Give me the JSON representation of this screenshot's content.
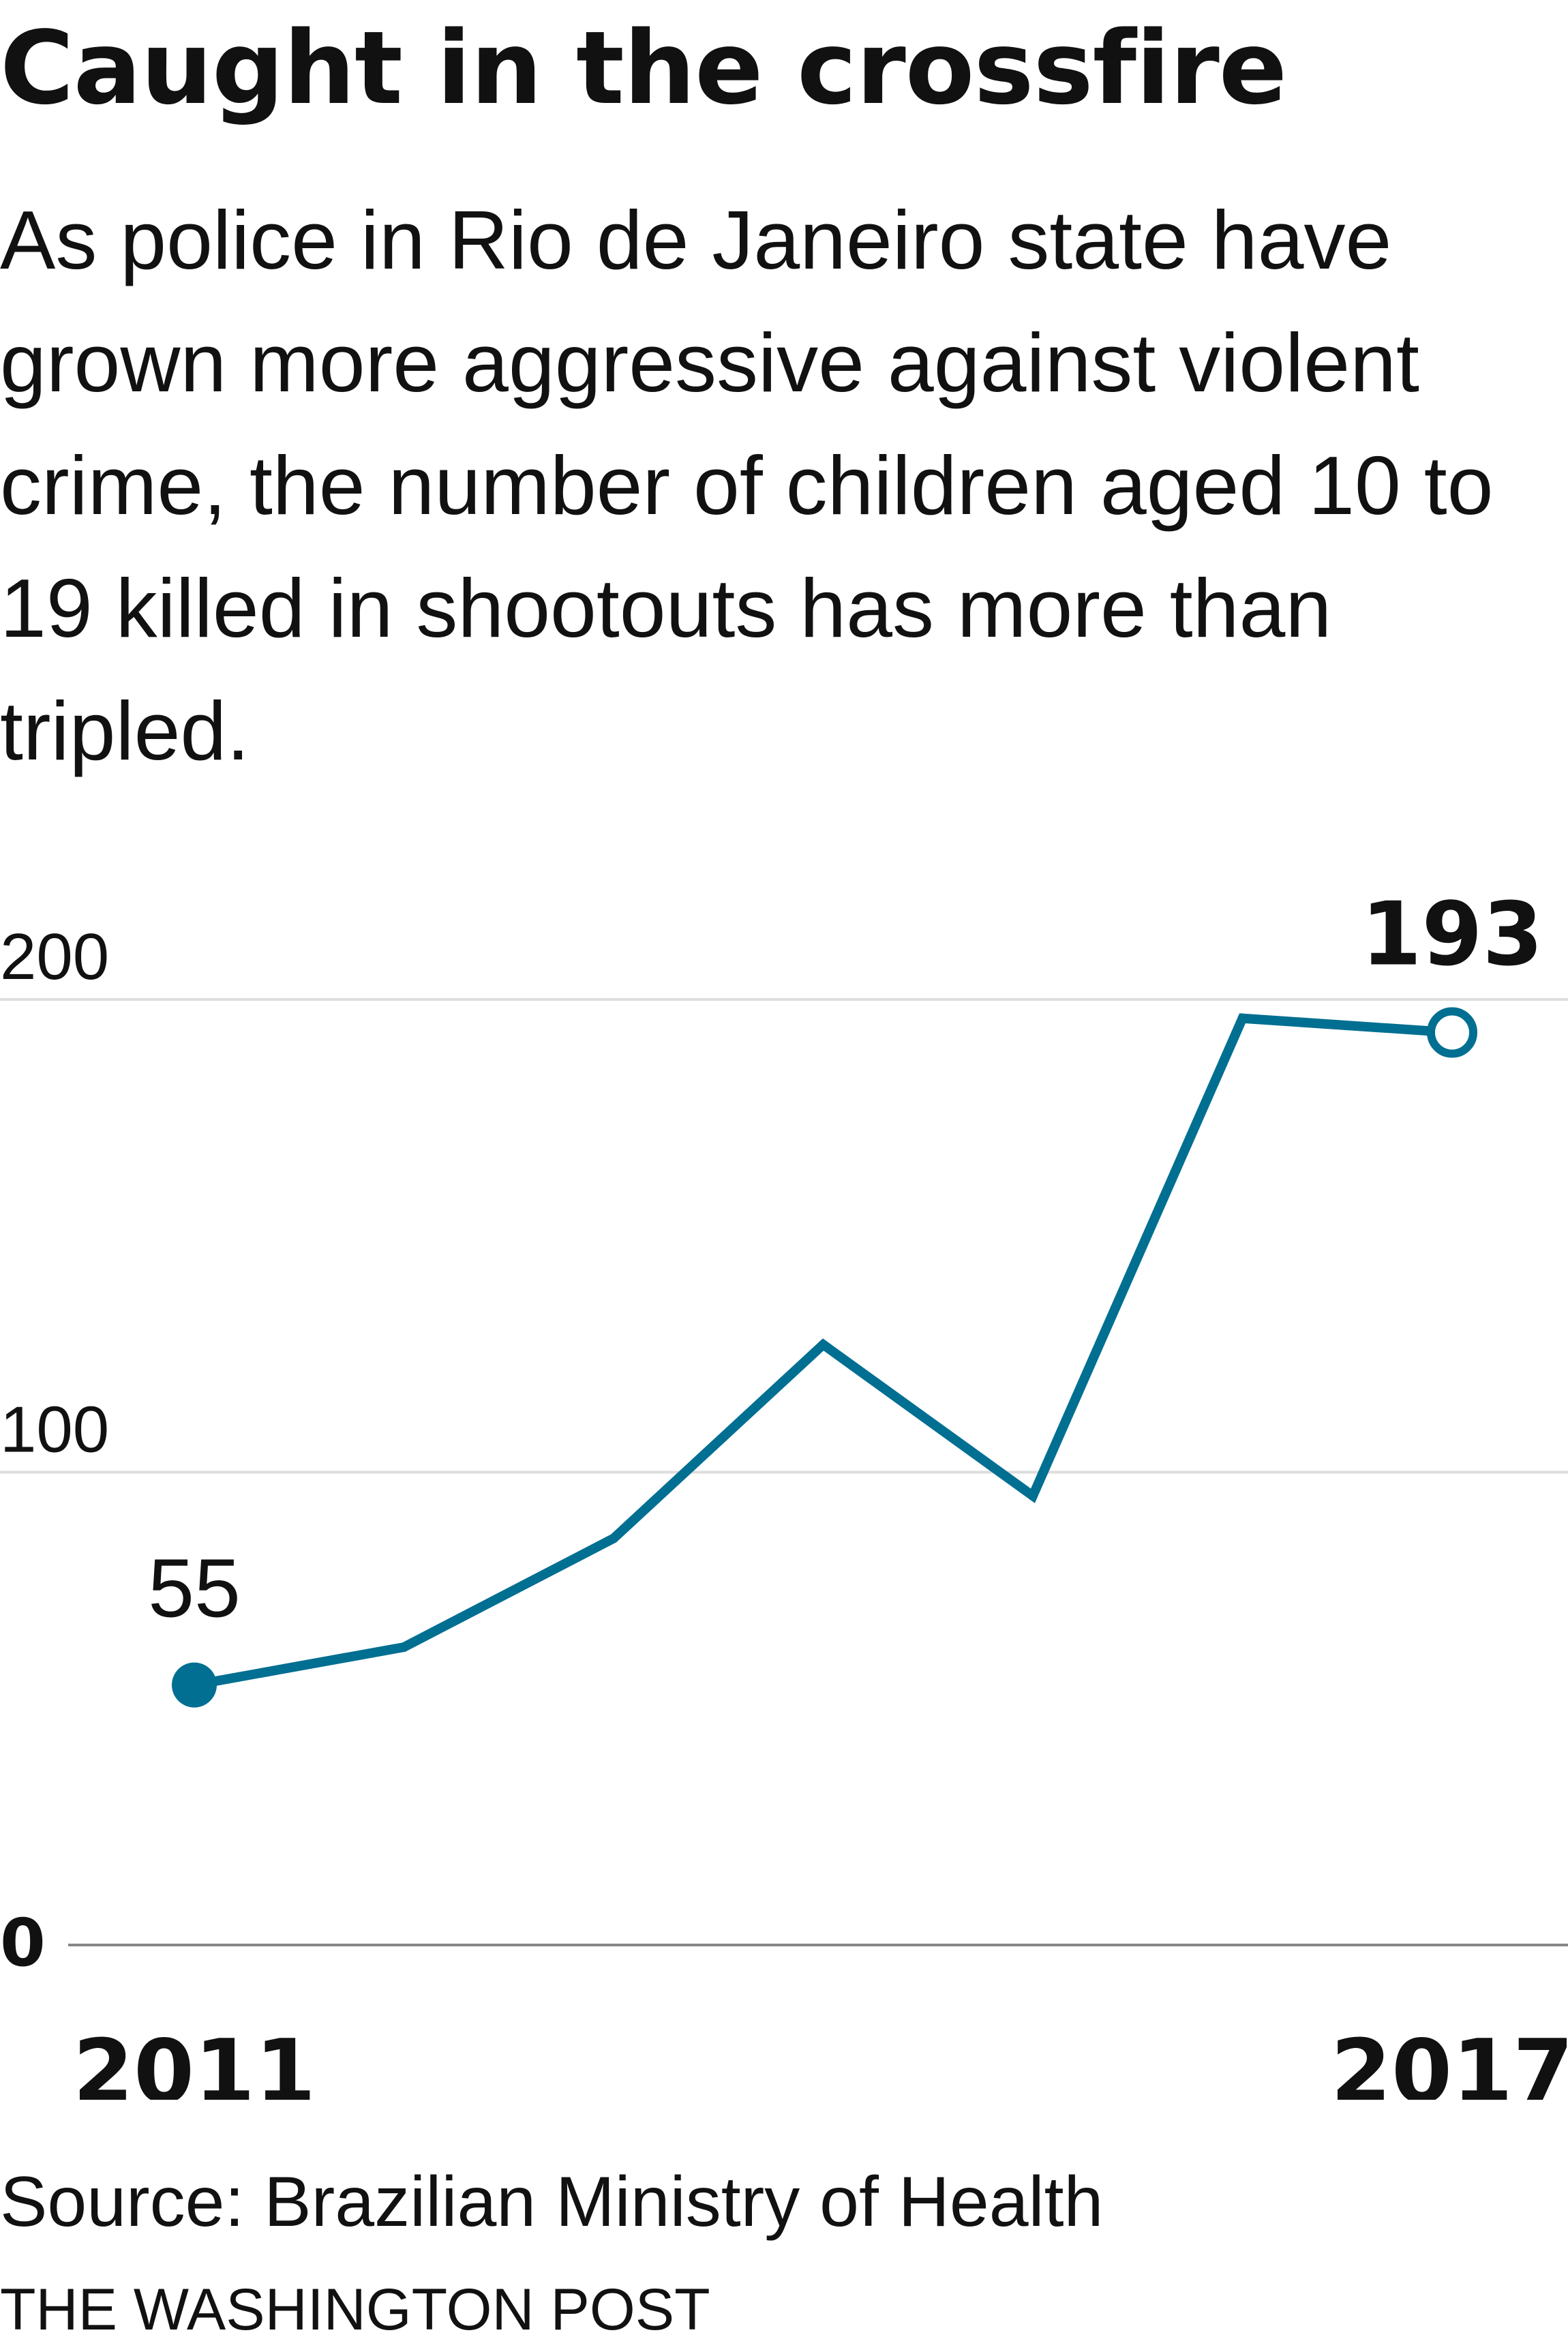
{
  "title": "Caught in the crossfire",
  "subtitle": "As police in Rio de Janeiro state have grown more aggressive against violent crime, the number of children aged 10 to 19 killed in shootouts has more than tripled.",
  "source": "Source: Brazilian Ministry of Health",
  "credit": "THE WASHINGTON POST",
  "colors": {
    "line": "#006f91",
    "grid": "#dddddd",
    "baseline": "#888888",
    "text": "#111111",
    "background": "#ffffff"
  },
  "chart_data": {
    "type": "line",
    "title": "",
    "xlabel": "",
    "ylabel": "",
    "x": [
      2011,
      2012,
      2013,
      2014,
      2015,
      2016,
      2017
    ],
    "series": [
      {
        "values": [
          55,
          63,
          86,
          127,
          95,
          196,
          193
        ]
      }
    ],
    "ylim": [
      0,
      200
    ],
    "y_ticks": [
      "0",
      "100",
      "200"
    ],
    "x_tick_labels": [
      "2011",
      "2017"
    ],
    "annotations": [
      {
        "x": 2011,
        "value": 55,
        "text": "55",
        "marker": "filled-circle"
      },
      {
        "x": 2017,
        "value": 193,
        "text": "193",
        "marker": "open-circle"
      }
    ],
    "grid": true,
    "legend": "none"
  }
}
